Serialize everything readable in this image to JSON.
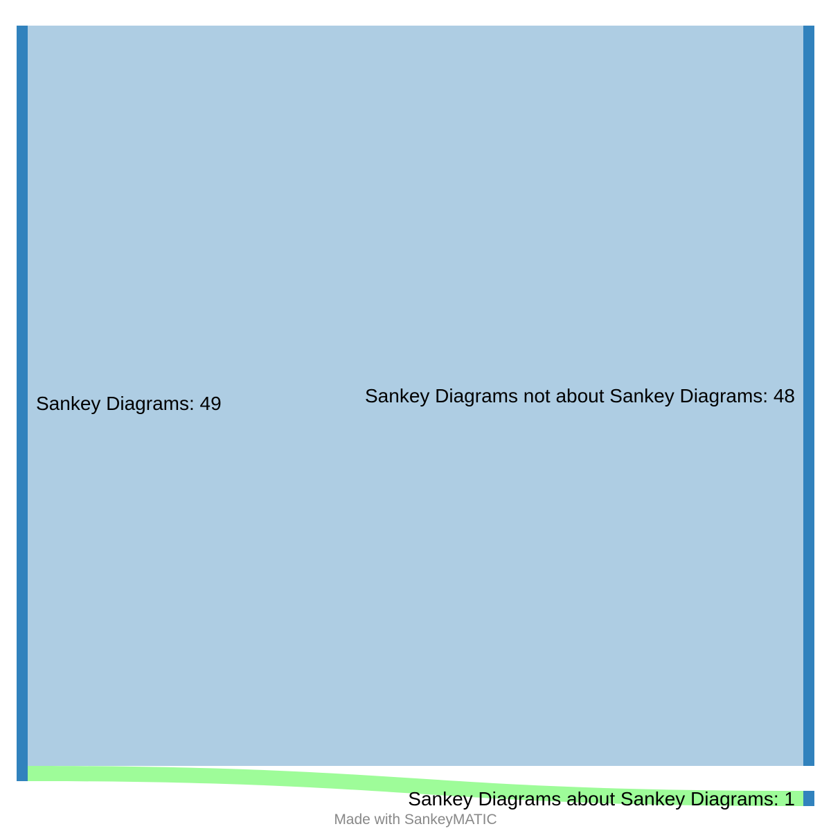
{
  "diagram": {
    "type": "sankey",
    "nodes": [
      {
        "id": "source",
        "name": "Sankey Diagrams",
        "value": 49,
        "label": "Sankey Diagrams: 49"
      },
      {
        "id": "not_about",
        "name": "Sankey Diagrams not about Sankey Diagrams",
        "value": 48,
        "label": "Sankey Diagrams not about Sankey Diagrams: 48"
      },
      {
        "id": "about",
        "name": "Sankey Diagrams about Sankey Diagrams",
        "value": 1,
        "label": "Sankey Diagrams about Sankey Diagrams: 1"
      }
    ],
    "links": [
      {
        "source": "Sankey Diagrams",
        "target": "Sankey Diagrams not about Sankey Diagrams",
        "value": 48
      },
      {
        "source": "Sankey Diagrams",
        "target": "Sankey Diagrams about Sankey Diagrams",
        "value": 1
      }
    ],
    "colors": {
      "node": "#3182bd",
      "link_not_about": "#aecde3",
      "link_about": "#9efc99"
    }
  },
  "footer": {
    "credit": "Made with SankeyMATIC"
  }
}
